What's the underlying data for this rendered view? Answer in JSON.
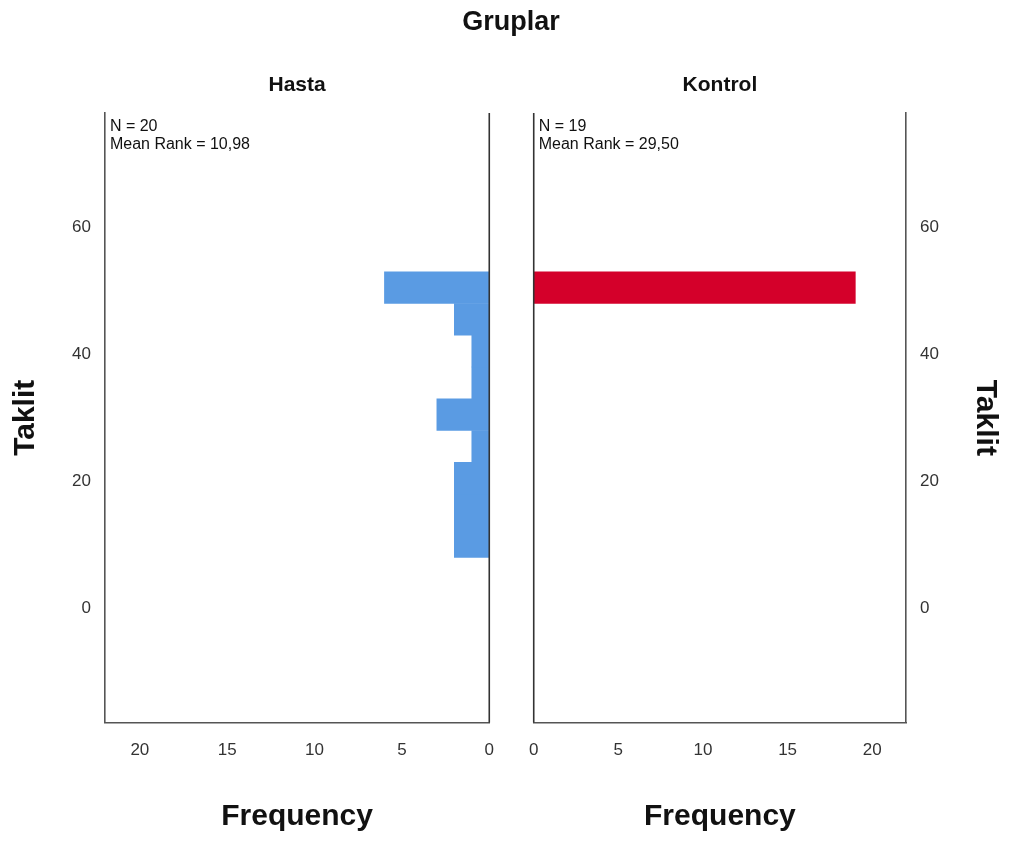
{
  "chart_data": [
    {
      "type": "histogram",
      "orientation": "horizontal",
      "title": "Gruplar",
      "subtitle": "Hasta",
      "xlabel": "Frequency",
      "ylabel": "Taklit",
      "bins": [
        8,
        13,
        18,
        23,
        28,
        33,
        38,
        43,
        48,
        53
      ],
      "values": [
        2,
        2,
        2,
        1,
        3,
        1,
        1,
        2,
        6
      ],
      "color": "#5a9be3",
      "xlim": [
        22,
        0
      ],
      "xticks": [
        20,
        15,
        10,
        5,
        0
      ],
      "ylim": [
        -18,
        78
      ],
      "yticks": [
        0,
        20,
        40,
        60
      ],
      "annotations": [
        "N = 20",
        "Mean Rank = 10,98"
      ],
      "grid": false,
      "legend": false
    },
    {
      "type": "histogram",
      "orientation": "horizontal",
      "subtitle": "Kontrol",
      "xlabel": "Frequency",
      "ylabel": "Taklit",
      "bins": [
        48,
        53
      ],
      "values": [
        19
      ],
      "color": "#d4002a",
      "xlim": [
        0,
        22
      ],
      "xticks": [
        0,
        5,
        10,
        15,
        20
      ],
      "ylim": [
        -18,
        78
      ],
      "yticks": [
        0,
        20,
        40,
        60
      ],
      "annotations": [
        "N = 19",
        "Mean Rank = 29,50"
      ],
      "grid": false,
      "legend": false
    }
  ]
}
